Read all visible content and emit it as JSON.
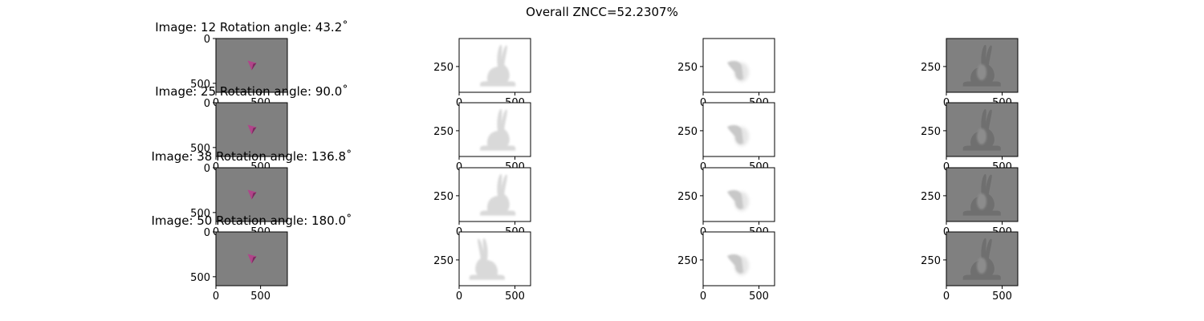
{
  "figure": {
    "suptitle": "Overall ZNCC=52.2307%"
  },
  "chart_data": {
    "type": "image-grid",
    "rows": [
      {
        "title": "Image: 12 Rotation angle: 43.2$^\\circ$",
        "title_display": "Image: 12 Rotation angle: 43.2˚",
        "image": 12,
        "rotation_angle_deg": 43.2
      },
      {
        "title": "Image: 25 Rotation angle: 90.0$^\\circ$",
        "title_display": "Image: 25 Rotation angle: 90.0˚",
        "image": 25,
        "rotation_angle_deg": 90.0
      },
      {
        "title": "Image: 38 Rotation angle: 136.8$^\\circ$",
        "title_display": "Image: 38 Rotation angle: 136.8˚",
        "image": 38,
        "rotation_angle_deg": 136.8
      },
      {
        "title": "Image: 50 Rotation angle: 180.0$^\\circ$",
        "title_display": "Image: 50 Rotation angle: 180.0˚",
        "image": 50,
        "rotation_angle_deg": 180.0
      }
    ],
    "columns": [
      {
        "content": "render",
        "background": "#808080",
        "xlim": [
          0,
          800
        ],
        "ylim": [
          600,
          0
        ],
        "xticks": [
          0,
          500
        ],
        "yticks": [
          0,
          500
        ],
        "xtick_labels": [
          "0",
          "500"
        ],
        "ytick_labels": [
          "0",
          "500"
        ]
      },
      {
        "content": "silhouette-light",
        "background": "#ffffff",
        "xlim": [
          0,
          640
        ],
        "ylim": [
          480,
          0
        ],
        "xticks": [
          0,
          500
        ],
        "yticks": [
          250
        ],
        "xtick_labels": [
          "0",
          "500"
        ],
        "ytick_labels": [
          "250"
        ]
      },
      {
        "content": "silhouette-small",
        "background": "#ffffff",
        "xlim": [
          0,
          640
        ],
        "ylim": [
          480,
          0
        ],
        "xticks": [
          0,
          500
        ],
        "yticks": [
          250
        ],
        "xtick_labels": [
          "0",
          "500"
        ],
        "ytick_labels": [
          "250"
        ]
      },
      {
        "content": "difference",
        "background": "#808080",
        "xlim": [
          0,
          640
        ],
        "ylim": [
          480,
          0
        ],
        "xticks": [
          0,
          500
        ],
        "yticks": [
          250
        ],
        "xtick_labels": [
          "0",
          "500"
        ],
        "ytick_labels": [
          "250"
        ]
      }
    ],
    "colors": {
      "render_bg": "#808080",
      "marker": "#b0458a",
      "marker_dark": "#7a2a5e",
      "silhouette_light": "#d9d9d9",
      "silhouette_blur": "#e6e6e6",
      "diff_dark": "#6a6a6a",
      "diff_light": "#8c8c8c"
    }
  }
}
